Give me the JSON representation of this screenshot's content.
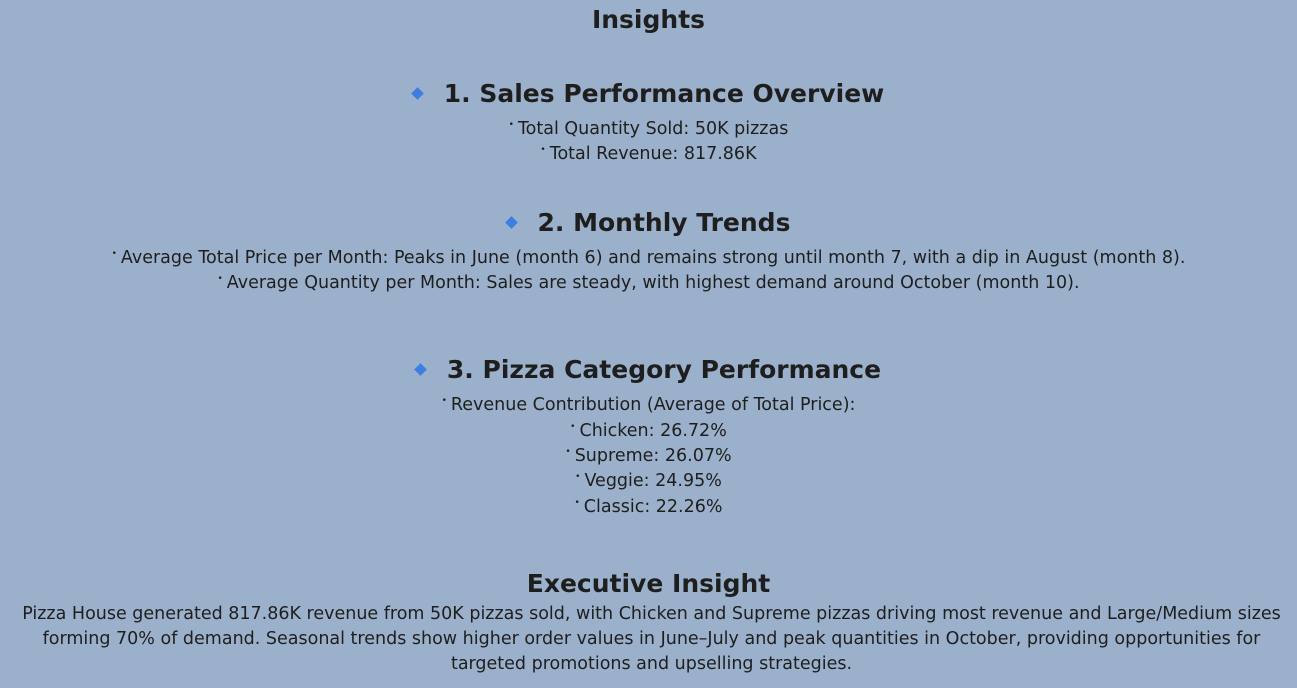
{
  "title": "Insights",
  "sections": [
    {
      "heading": "1. Sales Performance Overview",
      "bullets": [
        "Total Quantity Sold: 50K pizzas",
        "Total Revenue: 817.86K"
      ]
    },
    {
      "heading": "2. Monthly Trends",
      "bullets": [
        "Average Total Price per Month: Peaks in June (month 6) and remains strong until month 7, with a dip in August (month 8).",
        "Average Quantity per Month: Sales are steady, with highest demand around October (month 10)."
      ]
    },
    {
      "heading": "3. Pizza Category Performance",
      "bullets": [
        "Revenue Contribution (Average of Total Price):",
        "Chicken: 26.72%",
        "Supreme: 26.07%",
        "Veggie: 24.95%",
        "Classic: 22.26%"
      ]
    }
  ],
  "executive": {
    "heading": "Executive Insight",
    "body": "Pizza House generated 817.86K revenue from 50K pizzas sold, with Chicken and Supreme pizzas driving most revenue and Large/Medium sizes forming 70% of demand. Seasonal trends show higher order values in June–July and peak quantities in October, providing opportunities for targeted promotions and upselling strategies."
  },
  "colors": {
    "background": "#9bb1cb",
    "text": "#1e1e1e",
    "accent": "#3d7fe0"
  },
  "icons": {
    "section_marker": "blue-diamond-icon",
    "bullet": "bullet-dot-icon"
  }
}
